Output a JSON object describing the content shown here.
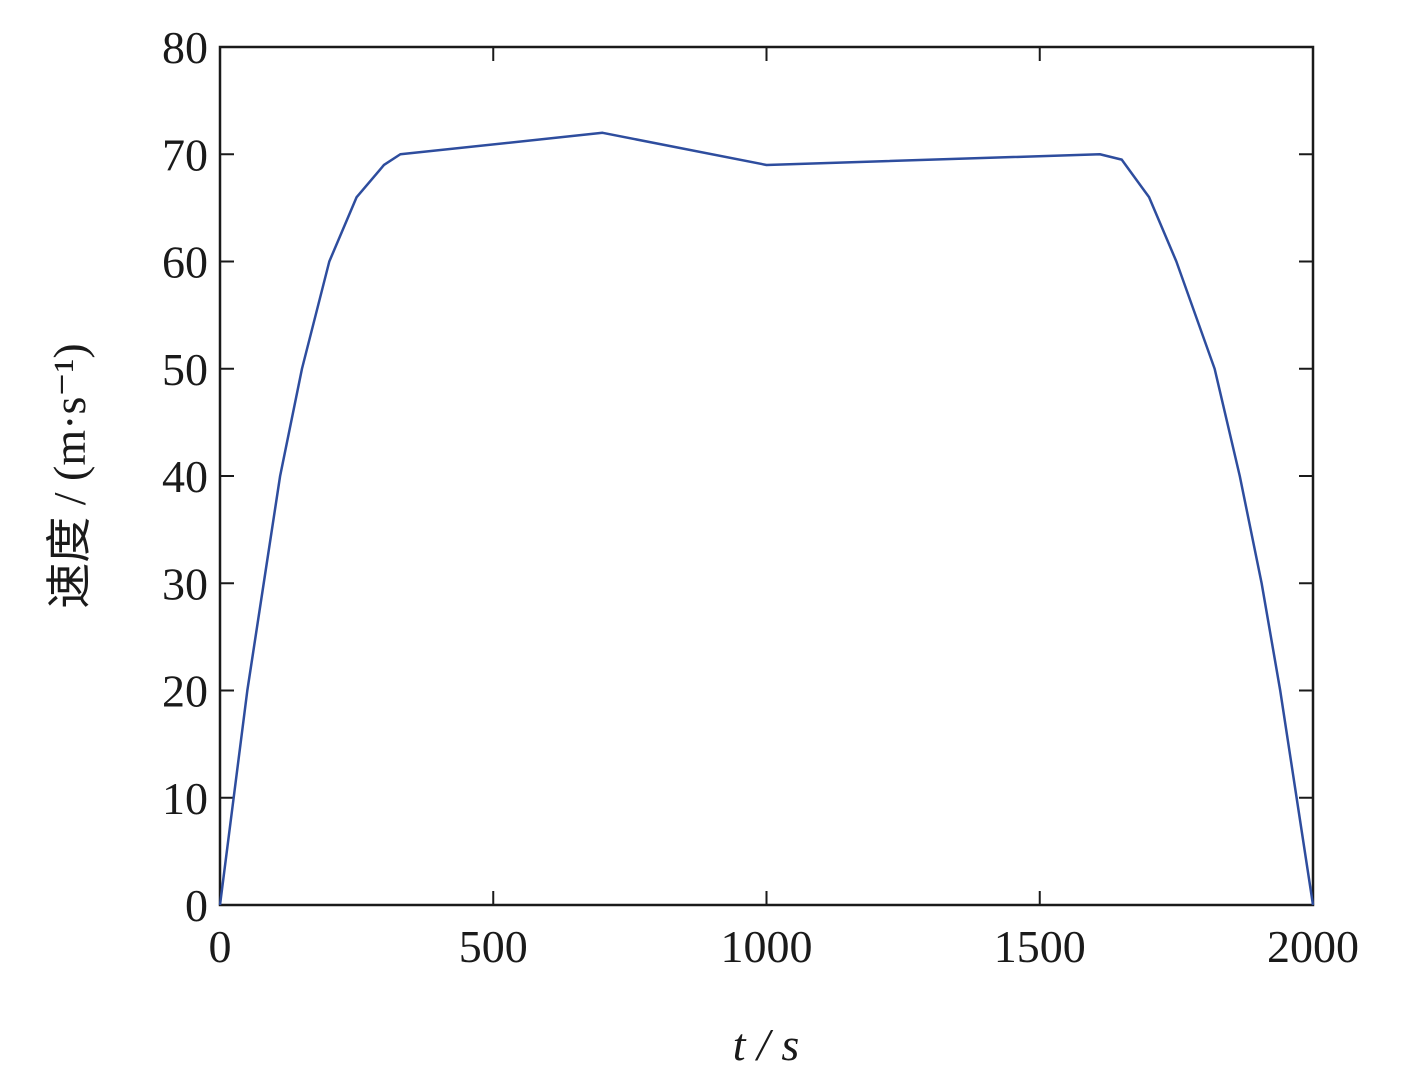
{
  "chart_data": {
    "type": "line",
    "x_label": "t / s",
    "y_label": "速度 / (m·s⁻¹)",
    "x": [
      0,
      25,
      50,
      80,
      110,
      150,
      200,
      250,
      300,
      330,
      700,
      1000,
      1610,
      1650,
      1700,
      1750,
      1820,
      1866,
      1906,
      1940,
      1970,
      2000
    ],
    "values": [
      0,
      10,
      20,
      30,
      40,
      50,
      60,
      66,
      69,
      70,
      72,
      69,
      70,
      69.5,
      66,
      60,
      50,
      40,
      30,
      20,
      10,
      0
    ],
    "color": "#2e4d9e",
    "xlim": [
      0,
      2000
    ],
    "xticks": [
      0,
      500,
      1000,
      1500,
      2000
    ],
    "ylim": [
      0,
      80
    ],
    "yticks": [
      0,
      10,
      20,
      30,
      40,
      50,
      60,
      70,
      80
    ],
    "grid": false
  }
}
